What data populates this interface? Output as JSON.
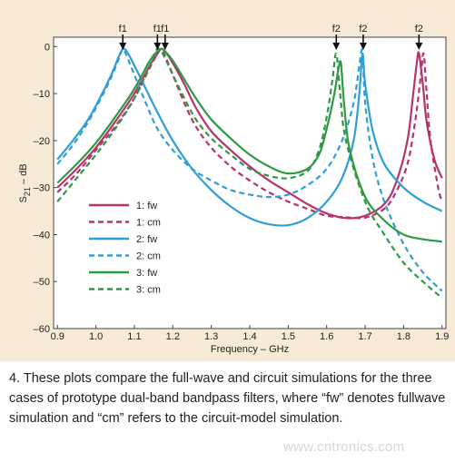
{
  "caption": {
    "number": "4.",
    "text": "These plots compare the full-wave and circuit simulations for the three cases of prototype dual-band bandpass filters, where “fw” denotes fullwave simulation and “cm” refers to the circuit-model simulation."
  },
  "watermark": "www.cntronics.com",
  "chart_data": {
    "type": "line",
    "xlabel": "Frequency – GHz",
    "ylabel_main": "S",
    "ylabel_sub": "21",
    "ylabel_tail": " – dB",
    "xlim": [
      0.89,
      1.91
    ],
    "ylim": [
      -60,
      2
    ],
    "x_ticks": [
      0.9,
      1.0,
      1.1,
      1.2,
      1.3,
      1.4,
      1.5,
      1.6,
      1.7,
      1.8,
      1.9
    ],
    "x_tick_labels": [
      "0.9",
      "1.0",
      "1.1",
      "1.2",
      "1.3",
      "1.4",
      "1.5",
      "1.6",
      "1.7",
      "1.8",
      "1.9"
    ],
    "y_ticks": [
      0,
      -10,
      -20,
      -30,
      -40,
      -50,
      -60
    ],
    "y_tick_labels": [
      "0",
      "–10",
      "–20",
      "–30",
      "–40",
      "–50",
      "–60"
    ],
    "grid": false,
    "legend_placement": "center-left",
    "annotations": [
      {
        "label": "f1",
        "x": 1.07
      },
      {
        "label": "f1",
        "x": 1.16
      },
      {
        "label": "f1",
        "x": 1.18
      },
      {
        "label": "f2",
        "x": 1.625
      },
      {
        "label": "f2",
        "x": 1.695
      },
      {
        "label": "f2",
        "x": 1.84
      }
    ],
    "series": [
      {
        "name": "1: fw",
        "color": "#b8336a",
        "dash": false,
        "points": [
          [
            0.9,
            -30
          ],
          [
            0.95,
            -26
          ],
          [
            1.0,
            -21.5
          ],
          [
            1.05,
            -16
          ],
          [
            1.1,
            -10
          ],
          [
            1.14,
            -4
          ],
          [
            1.16,
            -1.5
          ],
          [
            1.17,
            -0.5
          ],
          [
            1.18,
            -1
          ],
          [
            1.2,
            -3.5
          ],
          [
            1.23,
            -8
          ],
          [
            1.26,
            -13
          ],
          [
            1.3,
            -18
          ],
          [
            1.35,
            -22
          ],
          [
            1.4,
            -25.5
          ],
          [
            1.45,
            -28.5
          ],
          [
            1.5,
            -31
          ],
          [
            1.55,
            -33.5
          ],
          [
            1.6,
            -35.5
          ],
          [
            1.65,
            -36.5
          ],
          [
            1.7,
            -36
          ],
          [
            1.75,
            -33.5
          ],
          [
            1.78,
            -29
          ],
          [
            1.81,
            -20
          ],
          [
            1.825,
            -10
          ],
          [
            1.835,
            -3
          ],
          [
            1.84,
            -1.5
          ],
          [
            1.85,
            -8
          ],
          [
            1.86,
            -16
          ],
          [
            1.88,
            -24
          ],
          [
            1.9,
            -28
          ]
        ]
      },
      {
        "name": "1: cm",
        "color": "#b8336a",
        "dash": true,
        "points": [
          [
            0.9,
            -31
          ],
          [
            0.95,
            -27
          ],
          [
            1.0,
            -22
          ],
          [
            1.05,
            -17
          ],
          [
            1.1,
            -11
          ],
          [
            1.14,
            -4.5
          ],
          [
            1.16,
            -1.5
          ],
          [
            1.17,
            -0.5
          ],
          [
            1.18,
            -2
          ],
          [
            1.2,
            -6
          ],
          [
            1.23,
            -12
          ],
          [
            1.26,
            -17
          ],
          [
            1.3,
            -21.5
          ],
          [
            1.35,
            -25.5
          ],
          [
            1.4,
            -28.5
          ],
          [
            1.45,
            -31
          ],
          [
            1.5,
            -33
          ],
          [
            1.55,
            -34.5
          ],
          [
            1.6,
            -36
          ],
          [
            1.65,
            -36.3
          ],
          [
            1.7,
            -36.4
          ],
          [
            1.75,
            -34.5
          ],
          [
            1.78,
            -31
          ],
          [
            1.81,
            -25
          ],
          [
            1.83,
            -16
          ],
          [
            1.845,
            -6
          ],
          [
            1.852,
            -1.5
          ],
          [
            1.86,
            -10
          ],
          [
            1.87,
            -20
          ],
          [
            1.89,
            -30
          ],
          [
            1.9,
            -33
          ]
        ]
      },
      {
        "name": "2: fw",
        "color": "#2f9ed8",
        "dash": false,
        "points": [
          [
            0.9,
            -24
          ],
          [
            0.94,
            -20
          ],
          [
            0.98,
            -15.5
          ],
          [
            1.01,
            -11
          ],
          [
            1.04,
            -6
          ],
          [
            1.06,
            -2
          ],
          [
            1.07,
            -0.5
          ],
          [
            1.08,
            -1
          ],
          [
            1.1,
            -4
          ],
          [
            1.13,
            -9
          ],
          [
            1.16,
            -14
          ],
          [
            1.2,
            -20
          ],
          [
            1.25,
            -26
          ],
          [
            1.3,
            -30.5
          ],
          [
            1.35,
            -34
          ],
          [
            1.4,
            -36.5
          ],
          [
            1.45,
            -37.8
          ],
          [
            1.5,
            -38
          ],
          [
            1.55,
            -36.5
          ],
          [
            1.6,
            -33
          ],
          [
            1.64,
            -28
          ],
          [
            1.67,
            -20
          ],
          [
            1.685,
            -10
          ],
          [
            1.693,
            -1.5
          ],
          [
            1.7,
            -8
          ],
          [
            1.72,
            -18
          ],
          [
            1.75,
            -25
          ],
          [
            1.8,
            -30
          ],
          [
            1.85,
            -33
          ],
          [
            1.9,
            -35
          ]
        ]
      },
      {
        "name": "2: cm",
        "color": "#2f9ed8",
        "dash": true,
        "points": [
          [
            0.9,
            -25
          ],
          [
            0.94,
            -21
          ],
          [
            0.98,
            -16
          ],
          [
            1.01,
            -11.5
          ],
          [
            1.04,
            -6.5
          ],
          [
            1.06,
            -2.5
          ],
          [
            1.07,
            -0.5
          ],
          [
            1.08,
            -2
          ],
          [
            1.1,
            -6
          ],
          [
            1.13,
            -12
          ],
          [
            1.16,
            -17.5
          ],
          [
            1.2,
            -22
          ],
          [
            1.25,
            -26
          ],
          [
            1.3,
            -28.5
          ],
          [
            1.35,
            -30.5
          ],
          [
            1.4,
            -31.5
          ],
          [
            1.45,
            -32
          ],
          [
            1.5,
            -31.5
          ],
          [
            1.55,
            -29.5
          ],
          [
            1.6,
            -26
          ],
          [
            1.64,
            -20
          ],
          [
            1.67,
            -12
          ],
          [
            1.685,
            -4
          ],
          [
            1.693,
            -1
          ],
          [
            1.7,
            -12
          ],
          [
            1.72,
            -24
          ],
          [
            1.75,
            -33
          ],
          [
            1.8,
            -42
          ],
          [
            1.85,
            -48
          ],
          [
            1.9,
            -52
          ]
        ]
      },
      {
        "name": "3: fw",
        "color": "#2e9a46",
        "dash": false,
        "points": [
          [
            0.9,
            -29
          ],
          [
            0.95,
            -25
          ],
          [
            1.0,
            -20.5
          ],
          [
            1.05,
            -15
          ],
          [
            1.1,
            -9
          ],
          [
            1.14,
            -3
          ],
          [
            1.16,
            -1
          ],
          [
            1.17,
            -0.5
          ],
          [
            1.18,
            -1
          ],
          [
            1.2,
            -3
          ],
          [
            1.23,
            -7
          ],
          [
            1.26,
            -11
          ],
          [
            1.3,
            -15.5
          ],
          [
            1.35,
            -19.5
          ],
          [
            1.4,
            -23
          ],
          [
            1.45,
            -25.5
          ],
          [
            1.5,
            -27
          ],
          [
            1.55,
            -26
          ],
          [
            1.58,
            -23
          ],
          [
            1.6,
            -17.5
          ],
          [
            1.62,
            -10
          ],
          [
            1.63,
            -5
          ],
          [
            1.637,
            -3.5
          ],
          [
            1.645,
            -12
          ],
          [
            1.66,
            -22
          ],
          [
            1.7,
            -32
          ],
          [
            1.75,
            -37
          ],
          [
            1.8,
            -40
          ],
          [
            1.85,
            -41
          ],
          [
            1.9,
            -41.5
          ]
        ]
      },
      {
        "name": "3: cm",
        "color": "#2e9a46",
        "dash": true,
        "points": [
          [
            0.9,
            -33
          ],
          [
            0.95,
            -28
          ],
          [
            1.0,
            -23
          ],
          [
            1.05,
            -17.5
          ],
          [
            1.1,
            -11
          ],
          [
            1.14,
            -4
          ],
          [
            1.155,
            -1
          ],
          [
            1.165,
            -0.5
          ],
          [
            1.18,
            -2.5
          ],
          [
            1.2,
            -6
          ],
          [
            1.23,
            -11
          ],
          [
            1.26,
            -15.5
          ],
          [
            1.3,
            -19.5
          ],
          [
            1.35,
            -23
          ],
          [
            1.4,
            -26
          ],
          [
            1.45,
            -27.5
          ],
          [
            1.5,
            -28
          ],
          [
            1.55,
            -26.5
          ],
          [
            1.58,
            -22
          ],
          [
            1.6,
            -15
          ],
          [
            1.615,
            -7
          ],
          [
            1.625,
            -1.5
          ],
          [
            1.635,
            -10
          ],
          [
            1.65,
            -20
          ],
          [
            1.7,
            -33
          ],
          [
            1.75,
            -40
          ],
          [
            1.8,
            -46
          ],
          [
            1.85,
            -50
          ],
          [
            1.9,
            -53.5
          ]
        ]
      }
    ]
  }
}
